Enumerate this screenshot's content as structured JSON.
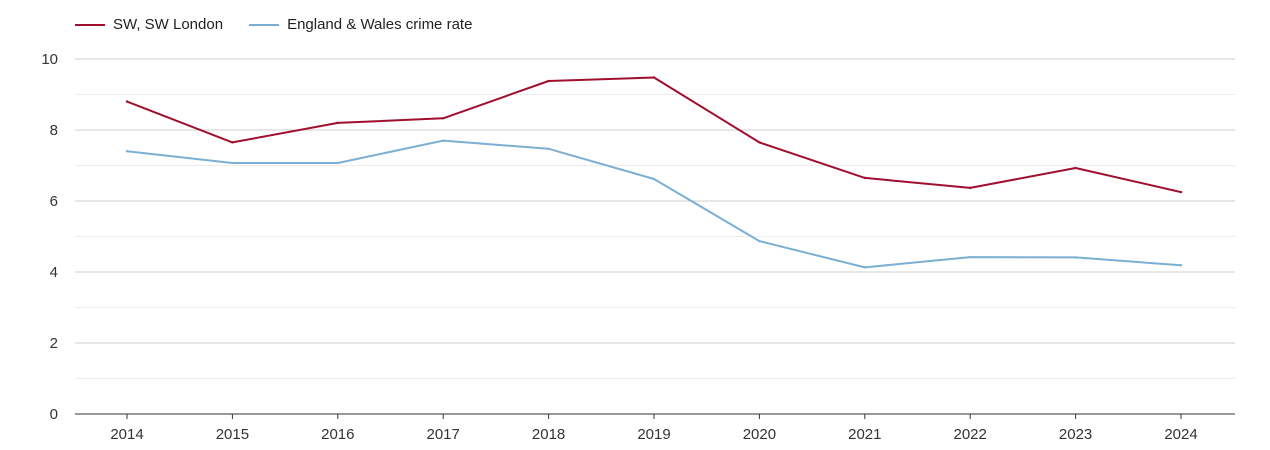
{
  "chart_data": {
    "type": "line",
    "categories": [
      "2014",
      "2015",
      "2016",
      "2017",
      "2018",
      "2019",
      "2020",
      "2021",
      "2022",
      "2023",
      "2024"
    ],
    "series": [
      {
        "name": "SW, SW London",
        "color": "#a0102e",
        "values": [
          8.8,
          7.65,
          8.2,
          8.33,
          9.38,
          9.48,
          7.65,
          6.65,
          6.37,
          6.93,
          6.25
        ]
      },
      {
        "name": "England & Wales crime rate",
        "color": "#7bafd4",
        "values": [
          7.4,
          7.07,
          7.07,
          7.7,
          7.47,
          6.62,
          4.87,
          4.13,
          4.42,
          4.41,
          4.19
        ]
      }
    ],
    "ylim": [
      0,
      10
    ],
    "yticks": [
      "0",
      "2",
      "4",
      "6",
      "8",
      "10"
    ],
    "grid": true,
    "legend_position": "top-left",
    "title": "",
    "xlabel": "",
    "ylabel": ""
  }
}
